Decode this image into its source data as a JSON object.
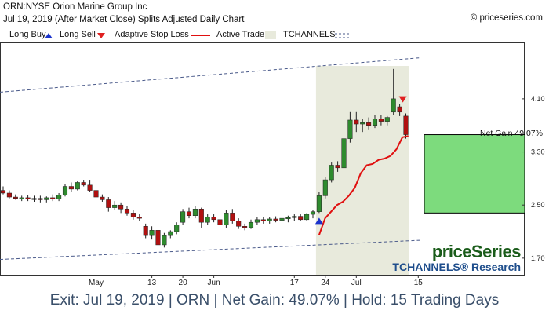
{
  "header": {
    "line1": "ORN:NYSE Orion Marine Group Inc",
    "line2": "Jul 19, 2019 (After Market Close)  Splits Adjusted Daily Chart",
    "copyright": "© priceseries.com"
  },
  "legend": {
    "long_buy": "Long Buy",
    "long_sell": "Long Sell",
    "stop_loss": "Adaptive Stop Loss",
    "active_trade": "Active Trade",
    "tchannels": "TCHANNELS"
  },
  "colors": {
    "up": "#2e8b2e",
    "down": "#b01010",
    "stop": "#e01010",
    "buy_marker": "#1a33cc",
    "sell_marker": "#e02020",
    "active_band": "#e8eadc",
    "gain_box": "#7ddb7d",
    "channel": "#4a5a8a"
  },
  "watermark": {
    "brand": "priceSeries",
    "sub": "TCHANNELS® Research"
  },
  "net_gain_label": "Net Gain 49.07%",
  "footer_text": "Exit: Jul 19, 2019 | ORN | Net Gain: 49.07% | Hold: 15 Trading Days",
  "chart_data": {
    "type": "candlestick",
    "y_axis_ticks": [
      1.7,
      2.5,
      3.3,
      4.1
    ],
    "y_axis_labels": [
      "1.70",
      "2.50",
      "3.30",
      "4.10"
    ],
    "ylim": [
      1.45,
      4.95
    ],
    "x_tick_labels": [
      {
        "i": 15,
        "label": "May"
      },
      {
        "i": 24,
        "label": "13"
      },
      {
        "i": 29,
        "label": "20"
      },
      {
        "i": 34,
        "label": "Jun"
      },
      {
        "i": 47,
        "label": "17"
      },
      {
        "i": 52,
        "label": "24"
      },
      {
        "i": 57,
        "label": "Jul"
      },
      {
        "i": 67,
        "label": "15"
      }
    ],
    "candles": [
      {
        "o": 2.72,
        "h": 2.78,
        "l": 2.66,
        "c": 2.68
      },
      {
        "o": 2.68,
        "h": 2.72,
        "l": 2.6,
        "c": 2.62
      },
      {
        "o": 2.62,
        "h": 2.66,
        "l": 2.58,
        "c": 2.6
      },
      {
        "o": 2.6,
        "h": 2.64,
        "l": 2.56,
        "c": 2.61
      },
      {
        "o": 2.61,
        "h": 2.65,
        "l": 2.56,
        "c": 2.59
      },
      {
        "o": 2.59,
        "h": 2.64,
        "l": 2.55,
        "c": 2.6
      },
      {
        "o": 2.6,
        "h": 2.64,
        "l": 2.54,
        "c": 2.58
      },
      {
        "o": 2.58,
        "h": 2.63,
        "l": 2.54,
        "c": 2.61
      },
      {
        "o": 2.61,
        "h": 2.66,
        "l": 2.56,
        "c": 2.59
      },
      {
        "o": 2.59,
        "h": 2.68,
        "l": 2.56,
        "c": 2.65
      },
      {
        "o": 2.65,
        "h": 2.82,
        "l": 2.63,
        "c": 2.78
      },
      {
        "o": 2.78,
        "h": 2.84,
        "l": 2.7,
        "c": 2.74
      },
      {
        "o": 2.74,
        "h": 2.86,
        "l": 2.72,
        "c": 2.84
      },
      {
        "o": 2.84,
        "h": 2.88,
        "l": 2.78,
        "c": 2.8
      },
      {
        "o": 2.8,
        "h": 2.88,
        "l": 2.7,
        "c": 2.72
      },
      {
        "o": 2.72,
        "h": 2.74,
        "l": 2.58,
        "c": 2.62
      },
      {
        "o": 2.62,
        "h": 2.66,
        "l": 2.55,
        "c": 2.58
      },
      {
        "o": 2.58,
        "h": 2.62,
        "l": 2.4,
        "c": 2.46
      },
      {
        "o": 2.46,
        "h": 2.56,
        "l": 2.42,
        "c": 2.5
      },
      {
        "o": 2.5,
        "h": 2.54,
        "l": 2.38,
        "c": 2.44
      },
      {
        "o": 2.44,
        "h": 2.48,
        "l": 2.34,
        "c": 2.38
      },
      {
        "o": 2.38,
        "h": 2.42,
        "l": 2.28,
        "c": 2.32
      },
      {
        "o": 2.32,
        "h": 2.36,
        "l": 2.26,
        "c": 2.3
      },
      {
        "o": 2.18,
        "h": 2.22,
        "l": 2.0,
        "c": 2.04
      },
      {
        "o": 2.04,
        "h": 2.18,
        "l": 1.98,
        "c": 2.12
      },
      {
        "o": 2.12,
        "h": 2.16,
        "l": 1.84,
        "c": 1.9
      },
      {
        "o": 1.9,
        "h": 2.08,
        "l": 1.86,
        "c": 2.04
      },
      {
        "o": 2.04,
        "h": 2.12,
        "l": 2.0,
        "c": 2.1
      },
      {
        "o": 2.1,
        "h": 2.24,
        "l": 2.06,
        "c": 2.2
      },
      {
        "o": 2.24,
        "h": 2.44,
        "l": 2.2,
        "c": 2.4
      },
      {
        "o": 2.4,
        "h": 2.46,
        "l": 2.3,
        "c": 2.34
      },
      {
        "o": 2.34,
        "h": 2.48,
        "l": 2.3,
        "c": 2.44
      },
      {
        "o": 2.44,
        "h": 2.46,
        "l": 2.16,
        "c": 2.24
      },
      {
        "o": 2.24,
        "h": 2.36,
        "l": 2.2,
        "c": 2.32
      },
      {
        "o": 2.32,
        "h": 2.36,
        "l": 2.24,
        "c": 2.28
      },
      {
        "o": 2.28,
        "h": 2.32,
        "l": 2.14,
        "c": 2.2
      },
      {
        "o": 2.2,
        "h": 2.42,
        "l": 2.16,
        "c": 2.38
      },
      {
        "o": 2.38,
        "h": 2.44,
        "l": 2.22,
        "c": 2.26
      },
      {
        "o": 2.26,
        "h": 2.3,
        "l": 2.14,
        "c": 2.18
      },
      {
        "o": 2.18,
        "h": 2.22,
        "l": 2.12,
        "c": 2.16
      },
      {
        "o": 2.16,
        "h": 2.28,
        "l": 2.14,
        "c": 2.24
      },
      {
        "o": 2.24,
        "h": 2.32,
        "l": 2.2,
        "c": 2.28
      },
      {
        "o": 2.28,
        "h": 2.32,
        "l": 2.22,
        "c": 2.26
      },
      {
        "o": 2.26,
        "h": 2.32,
        "l": 2.22,
        "c": 2.29
      },
      {
        "o": 2.29,
        "h": 2.33,
        "l": 2.24,
        "c": 2.27
      },
      {
        "o": 2.27,
        "h": 2.33,
        "l": 2.22,
        "c": 2.3
      },
      {
        "o": 2.3,
        "h": 2.34,
        "l": 2.24,
        "c": 2.31
      },
      {
        "o": 2.31,
        "h": 2.36,
        "l": 2.26,
        "c": 2.33
      },
      {
        "o": 2.33,
        "h": 2.36,
        "l": 2.26,
        "c": 2.28
      },
      {
        "o": 2.28,
        "h": 2.38,
        "l": 2.26,
        "c": 2.36
      },
      {
        "o": 2.36,
        "h": 2.42,
        "l": 2.3,
        "c": 2.4
      },
      {
        "o": 2.4,
        "h": 2.7,
        "l": 2.38,
        "c": 2.64
      },
      {
        "o": 2.64,
        "h": 2.92,
        "l": 2.6,
        "c": 2.88
      },
      {
        "o": 2.88,
        "h": 3.14,
        "l": 2.84,
        "c": 3.1
      },
      {
        "o": 3.1,
        "h": 3.16,
        "l": 3.0,
        "c": 3.06
      },
      {
        "o": 3.06,
        "h": 3.58,
        "l": 3.02,
        "c": 3.5
      },
      {
        "o": 3.5,
        "h": 3.9,
        "l": 3.44,
        "c": 3.78
      },
      {
        "o": 3.78,
        "h": 3.9,
        "l": 3.6,
        "c": 3.72
      },
      {
        "o": 3.72,
        "h": 3.8,
        "l": 3.6,
        "c": 3.74
      },
      {
        "o": 3.74,
        "h": 3.82,
        "l": 3.64,
        "c": 3.7
      },
      {
        "o": 3.7,
        "h": 3.86,
        "l": 3.66,
        "c": 3.8
      },
      {
        "o": 3.8,
        "h": 3.86,
        "l": 3.7,
        "c": 3.76
      },
      {
        "o": 3.76,
        "h": 3.84,
        "l": 3.7,
        "c": 3.82
      },
      {
        "o": 3.9,
        "h": 4.55,
        "l": 3.86,
        "c": 4.1
      },
      {
        "o": 3.98,
        "h": 4.02,
        "l": 3.84,
        "c": 3.9
      },
      {
        "o": 3.84,
        "h": 3.88,
        "l": 3.5,
        "c": 3.56
      }
    ],
    "active_trade": {
      "start_i": 51,
      "end_i": 65
    },
    "buy_marker_i": 51,
    "sell_marker_i": 64,
    "stop_loss": [
      2.05,
      2.3,
      2.4,
      2.5,
      2.55,
      2.64,
      2.76,
      2.98,
      3.1,
      3.12,
      3.18,
      3.2,
      3.24,
      3.34,
      3.52,
      3.54
    ],
    "channel_upper": [
      [
        0,
        4.2
      ],
      [
        68,
        4.72
      ]
    ],
    "channel_lower": [
      [
        0,
        1.68
      ],
      [
        68,
        1.97
      ]
    ],
    "net_gain_box": {
      "from": 2.38,
      "to": 3.56
    }
  }
}
